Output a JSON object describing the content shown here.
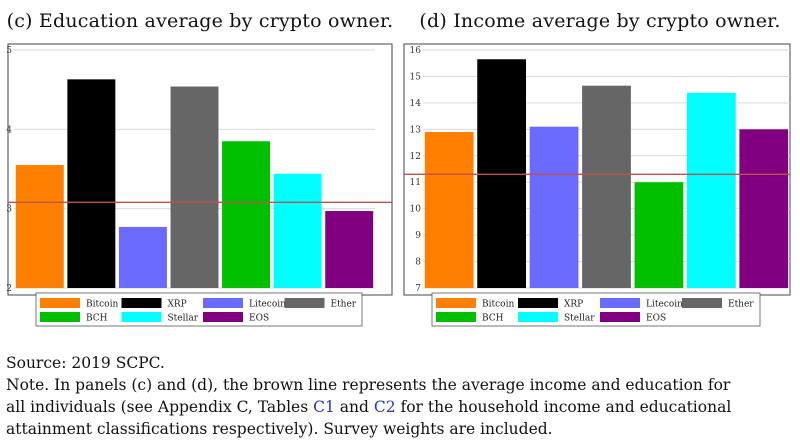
{
  "chart_data": [
    {
      "type": "bar",
      "title": "(c) Education average by crypto owner.",
      "categories": [
        "Bitcoin",
        "XRP",
        "Litecoin",
        "Ether",
        "BCH",
        "Stellar",
        "EOS"
      ],
      "values": [
        3.55,
        4.63,
        2.77,
        4.54,
        3.85,
        3.44,
        2.97
      ],
      "colors": [
        "#ff8000",
        "#000000",
        "#6a6aff",
        "#666666",
        "#00c000",
        "#00ffff",
        "#800080"
      ],
      "ylim": [
        2,
        5
      ],
      "yticks": [
        2,
        3,
        4,
        5
      ],
      "reference_line": 3.08,
      "reference_color": "#c0504d",
      "grid": true,
      "legend": "bottom"
    },
    {
      "type": "bar",
      "title": "(d) Income average by crypto owner.",
      "categories": [
        "Bitcoin",
        "XRP",
        "Litecoin",
        "Ether",
        "BCH",
        "Stellar",
        "EOS"
      ],
      "values": [
        12.9,
        15.65,
        13.1,
        14.65,
        11.0,
        14.38,
        13.0
      ],
      "colors": [
        "#ff8000",
        "#000000",
        "#6a6aff",
        "#666666",
        "#00c000",
        "#00ffff",
        "#800080"
      ],
      "ylim": [
        7,
        16
      ],
      "yticks": [
        7,
        8,
        9,
        10,
        11,
        12,
        13,
        14,
        15,
        16
      ],
      "reference_line": 11.3,
      "reference_color": "#c0504d",
      "grid": true,
      "legend": "bottom"
    }
  ],
  "note": {
    "source": "Source: 2019 SCPC.",
    "line1": "Note.  In panels (c) and (d), the brown line represents the average income and education for",
    "line2_a": "all individuals (see Appendix C, Tables ",
    "ref1": "C1",
    "line2_b": " and ",
    "ref2": "C2",
    "line2_c": " for the household income and educational",
    "line3": "attainment classifications respectively). Survey weights are included."
  }
}
